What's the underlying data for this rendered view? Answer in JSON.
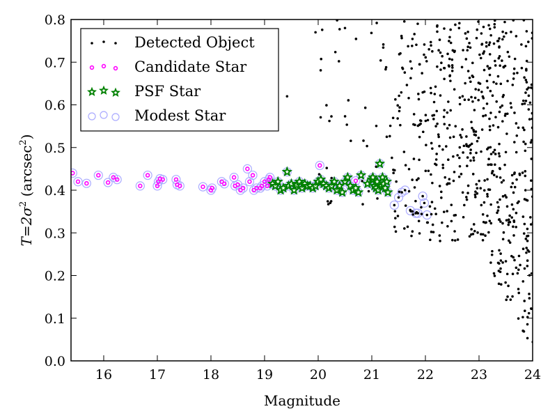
{
  "chart_data": {
    "type": "scatter",
    "title": "",
    "xlabel": "Magnitude",
    "ylabel": "T=2σ² (arcsec²)",
    "ylabel_parts": {
      "main": "T=2σ",
      "sup1": "2",
      "mid": " (arcsec",
      "sup2": "2",
      "end": ")"
    },
    "xlim": [
      15.39,
      24.0
    ],
    "ylim": [
      0.0,
      0.8
    ],
    "xticks": [
      16,
      17,
      18,
      19,
      20,
      21,
      22,
      23,
      24
    ],
    "xtick_labels": [
      "16",
      "17",
      "18",
      "19",
      "20",
      "21",
      "22",
      "23",
      "24"
    ],
    "yticks": [
      0.0,
      0.1,
      0.2,
      0.3,
      0.4,
      0.5,
      0.6,
      0.7,
      0.8
    ],
    "ytick_labels": [
      "0.0",
      "0.1",
      "0.2",
      "0.3",
      "0.4",
      "0.5",
      "0.6",
      "0.7",
      "0.8"
    ],
    "grid": false,
    "legend": {
      "placement": "top-left",
      "entries": [
        {
          "label": "Detected Object",
          "marker": "dot",
          "color": "#000000"
        },
        {
          "label": "Candidate Star",
          "marker": "small-circle",
          "color": "#ff00ff"
        },
        {
          "label": "PSF Star",
          "marker": "star",
          "color": "#008000"
        },
        {
          "label": "Modest Star",
          "marker": "open-circle",
          "color": "#aaaaff"
        }
      ]
    },
    "series": [
      {
        "name": "Candidate Star",
        "color": "#ff00ff",
        "points": [
          [
            15.42,
            0.44
          ],
          [
            15.52,
            0.42
          ],
          [
            15.68,
            0.416
          ],
          [
            15.9,
            0.435
          ],
          [
            16.08,
            0.418
          ],
          [
            16.18,
            0.43
          ],
          [
            16.25,
            0.425
          ],
          [
            16.68,
            0.41
          ],
          [
            16.82,
            0.435
          ],
          [
            17.0,
            0.41
          ],
          [
            17.02,
            0.42
          ],
          [
            17.05,
            0.427
          ],
          [
            17.1,
            0.425
          ],
          [
            17.35,
            0.425
          ],
          [
            17.37,
            0.413
          ],
          [
            17.42,
            0.41
          ],
          [
            17.85,
            0.408
          ],
          [
            18.0,
            0.4
          ],
          [
            18.02,
            0.405
          ],
          [
            18.2,
            0.42
          ],
          [
            18.25,
            0.415
          ],
          [
            18.43,
            0.43
          ],
          [
            18.45,
            0.41
          ],
          [
            18.5,
            0.413
          ],
          [
            18.55,
            0.4
          ],
          [
            18.6,
            0.405
          ],
          [
            18.68,
            0.45
          ],
          [
            18.72,
            0.42
          ],
          [
            18.78,
            0.435
          ],
          [
            18.8,
            0.4
          ],
          [
            18.85,
            0.405
          ],
          [
            18.92,
            0.405
          ],
          [
            18.95,
            0.41
          ],
          [
            19.0,
            0.42
          ],
          [
            19.05,
            0.41
          ],
          [
            19.08,
            0.425
          ],
          [
            19.1,
            0.43
          ],
          [
            19.12,
            0.415
          ],
          [
            20.03,
            0.458
          ],
          [
            20.7,
            0.422
          ]
        ]
      },
      {
        "name": "PSF Star",
        "color": "#008000",
        "points": [
          [
            19.15,
            0.415
          ],
          [
            19.2,
            0.41
          ],
          [
            19.25,
            0.42
          ],
          [
            19.3,
            0.4
          ],
          [
            19.35,
            0.405
          ],
          [
            19.42,
            0.443
          ],
          [
            19.45,
            0.41
          ],
          [
            19.5,
            0.415
          ],
          [
            19.55,
            0.4
          ],
          [
            19.6,
            0.412
          ],
          [
            19.65,
            0.42
          ],
          [
            19.7,
            0.405
          ],
          [
            19.75,
            0.415
          ],
          [
            19.8,
            0.41
          ],
          [
            19.85,
            0.41
          ],
          [
            19.9,
            0.405
          ],
          [
            19.95,
            0.41
          ],
          [
            20.0,
            0.42
          ],
          [
            20.05,
            0.425
          ],
          [
            20.1,
            0.415
          ],
          [
            20.15,
            0.41
          ],
          [
            20.2,
            0.405
          ],
          [
            20.25,
            0.41
          ],
          [
            20.3,
            0.42
          ],
          [
            20.35,
            0.4
          ],
          [
            20.4,
            0.41
          ],
          [
            20.45,
            0.395
          ],
          [
            20.5,
            0.42
          ],
          [
            20.55,
            0.43
          ],
          [
            20.6,
            0.41
          ],
          [
            20.65,
            0.4
          ],
          [
            20.7,
            0.405
          ],
          [
            20.75,
            0.395
          ],
          [
            20.8,
            0.435
          ],
          [
            20.92,
            0.415
          ],
          [
            21.0,
            0.425
          ],
          [
            21.02,
            0.43
          ],
          [
            21.05,
            0.41
          ],
          [
            21.08,
            0.405
          ],
          [
            21.1,
            0.42
          ],
          [
            21.12,
            0.4
          ],
          [
            21.15,
            0.462
          ],
          [
            21.18,
            0.41
          ],
          [
            21.2,
            0.43
          ],
          [
            21.22,
            0.415
          ],
          [
            21.25,
            0.405
          ],
          [
            21.28,
            0.42
          ],
          [
            21.3,
            0.395
          ]
        ]
      },
      {
        "name": "Modest Star",
        "color": "#aaaaff",
        "points": [
          [
            21.42,
            0.365
          ],
          [
            21.5,
            0.383
          ],
          [
            21.56,
            0.395
          ],
          [
            21.62,
            0.4
          ],
          [
            21.72,
            0.352
          ],
          [
            21.82,
            0.346
          ],
          [
            21.86,
            0.346
          ],
          [
            21.95,
            0.386
          ],
          [
            21.98,
            0.37
          ],
          [
            22.03,
            0.342
          ]
        ]
      },
      {
        "name": "Detected Object",
        "color": "#000000",
        "points": "generated-field"
      }
    ]
  }
}
